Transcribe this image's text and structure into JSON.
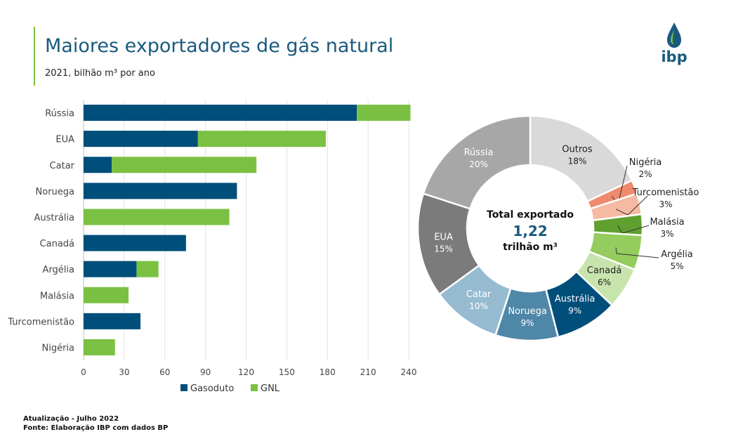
{
  "header": {
    "title": "Maiores exportadores de gás natural",
    "subtitle": "2021, bilhão m³ por ano",
    "logo_text": "ibp"
  },
  "colors": {
    "accent": "#7cc241",
    "gasoduto": "#004e7a",
    "gnl": "#7ac143",
    "title": "#1a5a7e",
    "center_value": "#1a5a7e"
  },
  "chart_data": [
    {
      "type": "bar",
      "orientation": "horizontal",
      "stacked": true,
      "categories": [
        "Rússia",
        "EUA",
        "Catar",
        "Noruega",
        "Austrália",
        "Canadá",
        "Argélia",
        "Malásia",
        "Turcomenistão",
        "Nigéria"
      ],
      "series": [
        {
          "name": "Gasoduto",
          "color": "#004e7a",
          "values": [
            201.7,
            84.4,
            20.8,
            113.2,
            0,
            75.6,
            39.1,
            0,
            42.0,
            0
          ]
        },
        {
          "name": "GNL",
          "color": "#7ac143",
          "values": [
            39.6,
            94.4,
            106.8,
            0,
            107.6,
            0,
            16.2,
            33.2,
            0,
            23.2
          ]
        }
      ],
      "xlim": [
        0,
        240
      ],
      "xticks": [
        "0",
        "30",
        "60",
        "90",
        "120",
        "150",
        "180",
        "210",
        "240"
      ],
      "grid": true,
      "legend": "bottom"
    },
    {
      "type": "pie",
      "donut": true,
      "center_label": "Total exportado",
      "center_value": "1,22",
      "center_unit": "trilhão m³",
      "slices": [
        {
          "name": "Outros",
          "value": 18,
          "label": "18%",
          "color": "#d9d9d9",
          "text_color": "#222222",
          "inside": true
        },
        {
          "name": "Nigéria",
          "value": 2,
          "label": "2%",
          "color": "#ef8a6c",
          "text_color": "#222222",
          "inside": false
        },
        {
          "name": "Turcomenistão",
          "value": 3,
          "label": "3%",
          "color": "#f6b9a3",
          "text_color": "#222222",
          "inside": false
        },
        {
          "name": "Malásia",
          "value": 3,
          "label": "3%",
          "color": "#5fa030",
          "text_color": "#222222",
          "inside": false
        },
        {
          "name": "Argélia",
          "value": 5,
          "label": "5%",
          "color": "#94cc5e",
          "text_color": "#222222",
          "inside": false
        },
        {
          "name": "Canadá",
          "value": 6,
          "label": "6%",
          "color": "#c8e4ad",
          "text_color": "#222222",
          "inside": true
        },
        {
          "name": "Austrália",
          "value": 9,
          "label": "9%",
          "color": "#004e7a",
          "text_color": "#ffffff",
          "inside": true
        },
        {
          "name": "Noruega",
          "value": 9,
          "label": "9%",
          "color": "#4f87a8",
          "text_color": "#ffffff",
          "inside": true
        },
        {
          "name": "Catar",
          "value": 10,
          "label": "10%",
          "color": "#96bbd1",
          "text_color": "#ffffff",
          "inside": true
        },
        {
          "name": "EUA",
          "value": 15,
          "label": "15%",
          "color": "#7b7b7b",
          "text_color": "#ffffff",
          "inside": true
        },
        {
          "name": "Rússia",
          "value": 20,
          "label": "20%",
          "color": "#a7a7a7",
          "text_color": "#ffffff",
          "inside": true
        }
      ]
    }
  ],
  "footer": {
    "update": "Atualização - Julho 2022",
    "source": "Fonte: Elaboração IBP com dados BP"
  }
}
